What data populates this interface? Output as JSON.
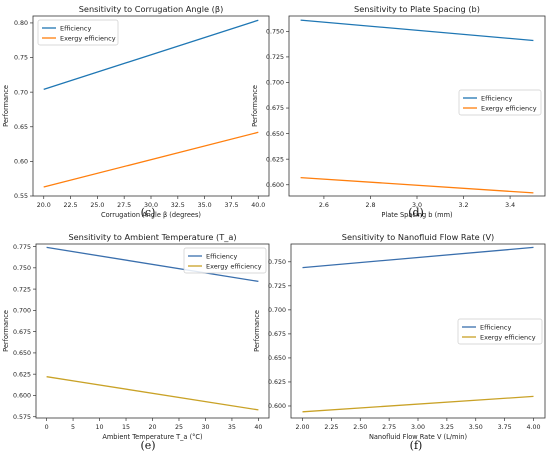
{
  "chart_data": [
    {
      "type": "line",
      "panel_label": "(c)",
      "title": "Sensitivity to Corrugation Angle (β)",
      "xlabel": "Corrugation Angle β (degrees)",
      "ylabel": "Performance",
      "xlim": [
        19.0,
        41.0
      ],
      "ylim": [
        0.55,
        0.81
      ],
      "xticks": [
        20.0,
        22.5,
        25.0,
        27.5,
        30.0,
        32.5,
        35.0,
        37.5,
        40.0
      ],
      "xtick_labels": [
        "20.0",
        "22.5",
        "25.0",
        "27.5",
        "30.0",
        "32.5",
        "35.0",
        "37.5",
        "40.0"
      ],
      "yticks": [
        0.55,
        0.6,
        0.65,
        0.7,
        0.75,
        0.8
      ],
      "ytick_labels": [
        "0.55",
        "0.60",
        "0.65",
        "0.70",
        "0.75",
        "0.80"
      ],
      "legend_position": "top-left",
      "grid": false,
      "series": [
        {
          "name": "Efficiency",
          "color": "#1f77b4",
          "x": [
            20,
            40
          ],
          "y": [
            0.704,
            0.804
          ]
        },
        {
          "name": "Exergy efficiency",
          "color": "#ff7f0e",
          "x": [
            20,
            40
          ],
          "y": [
            0.563,
            0.642
          ]
        }
      ]
    },
    {
      "type": "line",
      "panel_label": "(d)",
      "title": "Sensitivity to Plate Spacing (b)",
      "xlabel": "Plate Spacing b (mm)",
      "ylabel": "Performance",
      "xlim": [
        2.45,
        3.55
      ],
      "ylim": [
        0.589,
        0.765
      ],
      "xticks": [
        2.6,
        2.8,
        3.0,
        3.2,
        3.4
      ],
      "xtick_labels": [
        "2.6",
        "2.8",
        "3.0",
        "3.2",
        "3.4"
      ],
      "yticks": [
        0.6,
        0.625,
        0.65,
        0.675,
        0.7,
        0.725,
        0.75
      ],
      "ytick_labels": [
        "0.600",
        "0.625",
        "0.650",
        "0.675",
        "0.700",
        "0.725",
        "0.750"
      ],
      "legend_position": "center-right",
      "grid": false,
      "series": [
        {
          "name": "Efficiency",
          "color": "#1f77b4",
          "x": [
            2.5,
            3.5
          ],
          "y": [
            0.761,
            0.741
          ]
        },
        {
          "name": "Exergy efficiency",
          "color": "#ff7f0e",
          "x": [
            2.5,
            3.5
          ],
          "y": [
            0.607,
            0.592
          ]
        }
      ]
    },
    {
      "type": "line",
      "panel_label": "(e)",
      "title": "Sensitivity to Ambient Temperature (T_a)",
      "xlabel": "Ambient Temperature T_a (°C)",
      "ylabel": "Performance",
      "xlim": [
        -2,
        42
      ],
      "ylim": [
        0.5735,
        0.778
      ],
      "xticks": [
        0,
        5,
        10,
        15,
        20,
        25,
        30,
        35,
        40
      ],
      "xtick_labels": [
        "0",
        "5",
        "10",
        "15",
        "20",
        "25",
        "30",
        "35",
        "40"
      ],
      "yticks": [
        0.575,
        0.6,
        0.625,
        0.65,
        0.675,
        0.7,
        0.725,
        0.75,
        0.775
      ],
      "ytick_labels": [
        "0.575",
        "0.600",
        "0.625",
        "0.650",
        "0.675",
        "0.700",
        "0.725",
        "0.750",
        "0.775"
      ],
      "legend_position": "top-right",
      "grid": false,
      "series": [
        {
          "name": "Efficiency",
          "color": "#3a6fad",
          "x": [
            0,
            40
          ],
          "y": [
            0.774,
            0.734
          ]
        },
        {
          "name": "Exergy efficiency",
          "color": "#c9a227",
          "x": [
            0,
            40
          ],
          "y": [
            0.622,
            0.583
          ]
        }
      ]
    },
    {
      "type": "line",
      "panel_label": "(f)",
      "title": "Sensitivity to Nanofluid Flow Rate (V)",
      "xlabel": "Nanofluid Flow Rate V (L/min)",
      "ylabel": "Performance",
      "xlim": [
        1.9,
        4.1
      ],
      "ylim": [
        0.5875,
        0.7685
      ],
      "xticks": [
        2.0,
        2.25,
        2.5,
        2.75,
        3.0,
        3.25,
        3.5,
        3.75,
        4.0
      ],
      "xtick_labels": [
        "2.00",
        "2.25",
        "2.50",
        "2.75",
        "3.00",
        "3.25",
        "3.50",
        "3.75",
        "4.00"
      ],
      "yticks": [
        0.6,
        0.625,
        0.65,
        0.675,
        0.7,
        0.725,
        0.75
      ],
      "ytick_labels": [
        "0.600",
        "0.625",
        "0.650",
        "0.675",
        "0.700",
        "0.725",
        "0.750"
      ],
      "legend_position": "center-right",
      "grid": false,
      "series": [
        {
          "name": "Efficiency",
          "color": "#3a6fad",
          "x": [
            2,
            4
          ],
          "y": [
            0.744,
            0.765
          ]
        },
        {
          "name": "Exergy efficiency",
          "color": "#c9a227",
          "x": [
            2,
            4
          ],
          "y": [
            0.594,
            0.61
          ]
        }
      ]
    }
  ]
}
